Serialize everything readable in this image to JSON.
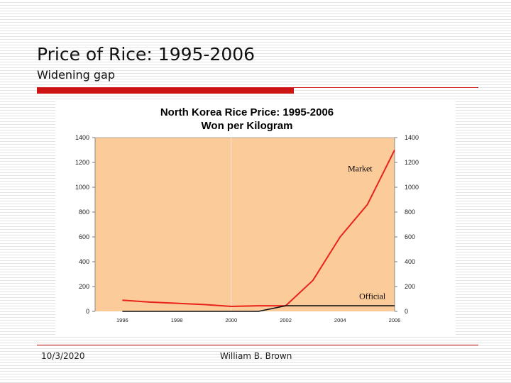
{
  "slide": {
    "title": "Price of Rice: 1995-2006",
    "subtitle": "Widening gap",
    "date": "10/3/2020",
    "author": "William B. Brown",
    "accent_color": "#cc1414"
  },
  "chart_data": {
    "type": "line",
    "title": "North Korea Rice Price:  1995-2006",
    "subtitle": "Won per Kilogram",
    "xlabel": "",
    "ylabel": "",
    "xlim": [
      1995,
      2006
    ],
    "ylim": [
      0,
      1400
    ],
    "x_ticks": [
      1996,
      1998,
      2000,
      2002,
      2004,
      2006
    ],
    "y_ticks": [
      0,
      200,
      400,
      600,
      800,
      1000,
      1200,
      1400
    ],
    "grid": false,
    "plot_background": "#fccb9a",
    "series": [
      {
        "name": "Market",
        "color": "#e8231b",
        "x": [
          1996,
          1997,
          1998,
          1999,
          2000,
          2001,
          2002,
          2003,
          2004,
          2005,
          2006
        ],
        "values": [
          90,
          75,
          65,
          55,
          40,
          45,
          45,
          250,
          600,
          860,
          1300
        ]
      },
      {
        "name": "Official",
        "color": "#111111",
        "x": [
          1996,
          1997,
          1998,
          1999,
          2000,
          2001,
          2002,
          2003,
          2004,
          2005,
          2006
        ],
        "values": [
          0,
          0,
          0,
          0,
          0,
          0,
          45,
          45,
          45,
          45,
          45
        ]
      }
    ]
  }
}
